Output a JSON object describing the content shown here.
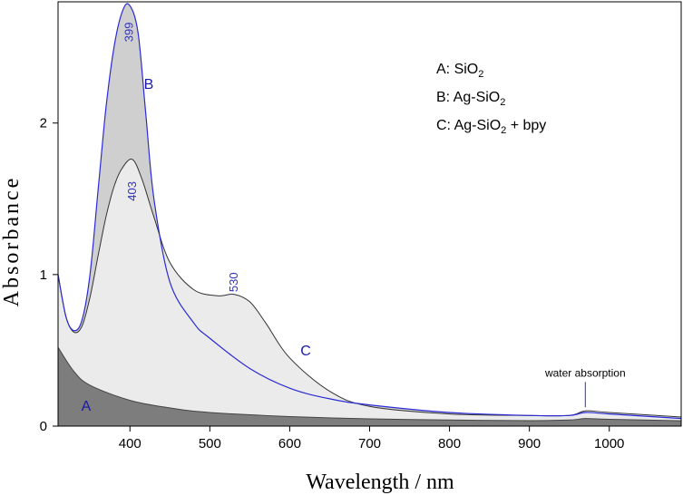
{
  "chart_data": {
    "type": "line",
    "xlabel": "Wavelength / nm",
    "ylabel": "Absorbance",
    "xlim": [
      310,
      1090
    ],
    "ylim": [
      0,
      2.8
    ],
    "xticks": [
      400,
      500,
      600,
      700,
      800,
      900,
      1000
    ],
    "yticks": [
      0,
      1,
      2
    ],
    "xtick_labels": [
      "400",
      "500",
      "600",
      "700",
      "800",
      "900",
      "1000"
    ],
    "ytick_labels": [
      "0",
      "1",
      "2"
    ],
    "legend": [
      {
        "prefix": "A: SiO",
        "sub": "2",
        "suffix": ""
      },
      {
        "prefix": "B: Ag-SiO",
        "sub": "2",
        "suffix": ""
      },
      {
        "prefix": "C: Ag-SiO",
        "sub": "2",
        "suffix": " + bpy"
      }
    ],
    "series": [
      {
        "name": "A",
        "label": "A",
        "x": [
          310,
          330,
          350,
          400,
          450,
          500,
          600,
          700,
          800,
          900,
          950,
          970,
          1000,
          1090
        ],
        "values": [
          0.52,
          0.36,
          0.27,
          0.17,
          0.12,
          0.09,
          0.063,
          0.048,
          0.04,
          0.036,
          0.04,
          0.05,
          0.045,
          0.035
        ]
      },
      {
        "name": "B",
        "label": "B",
        "x": [
          310,
          320,
          330,
          340,
          350,
          360,
          370,
          380,
          390,
          399,
          410,
          420,
          430,
          450,
          480,
          500,
          550,
          600,
          650,
          700,
          800,
          900,
          950,
          970,
          1000,
          1090
        ],
        "values": [
          1.0,
          0.72,
          0.63,
          0.7,
          1.0,
          1.55,
          2.1,
          2.5,
          2.73,
          2.78,
          2.6,
          2.05,
          1.5,
          0.95,
          0.68,
          0.58,
          0.38,
          0.25,
          0.18,
          0.14,
          0.09,
          0.07,
          0.07,
          0.09,
          0.08,
          0.05
        ]
      },
      {
        "name": "C",
        "label": "C",
        "x": [
          310,
          320,
          330,
          340,
          350,
          360,
          370,
          380,
          390,
          403,
          415,
          430,
          450,
          480,
          510,
          530,
          550,
          570,
          600,
          650,
          700,
          800,
          900,
          950,
          970,
          1000,
          1090
        ],
        "values": [
          1.0,
          0.72,
          0.62,
          0.66,
          0.85,
          1.12,
          1.38,
          1.58,
          1.7,
          1.76,
          1.63,
          1.38,
          1.08,
          0.9,
          0.86,
          0.87,
          0.82,
          0.68,
          0.45,
          0.23,
          0.13,
          0.08,
          0.07,
          0.07,
          0.1,
          0.09,
          0.06
        ]
      }
    ],
    "peak_annotations": [
      {
        "text": "399",
        "x": 399,
        "y": 2.6
      },
      {
        "text": "403",
        "x": 403,
        "y": 1.55
      },
      {
        "text": "530",
        "x": 530,
        "y": 0.95
      }
    ],
    "note": {
      "text": "water absorption",
      "x": 970,
      "y": 0.1
    }
  }
}
